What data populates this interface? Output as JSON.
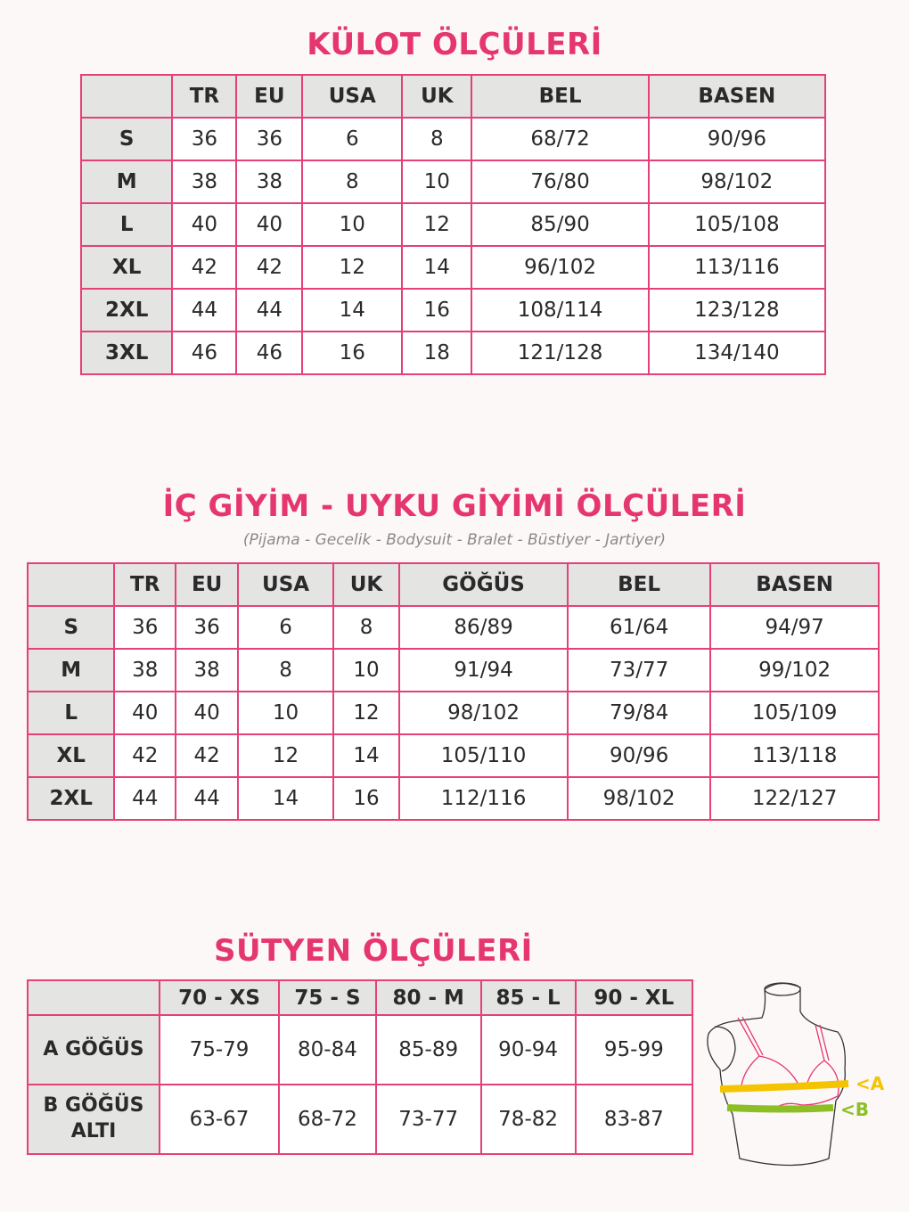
{
  "colors": {
    "accent": "#e5366f",
    "header_bg": "#e4e4e3",
    "border": "#e5407a",
    "band_a": "#f5c400",
    "band_b": "#8cbf26"
  },
  "kulot": {
    "title": "KÜLOT ÖLÇÜLERİ",
    "headers": [
      "",
      "TR",
      "EU",
      "USA",
      "UK",
      "BEL",
      "BASEN"
    ],
    "rows": [
      [
        "S",
        "36",
        "36",
        "6",
        "8",
        "68/72",
        "90/96"
      ],
      [
        "M",
        "38",
        "38",
        "8",
        "10",
        "76/80",
        "98/102"
      ],
      [
        "L",
        "40",
        "40",
        "10",
        "12",
        "85/90",
        "105/108"
      ],
      [
        "XL",
        "42",
        "42",
        "12",
        "14",
        "96/102",
        "113/116"
      ],
      [
        "2XL",
        "44",
        "44",
        "14",
        "16",
        "108/114",
        "123/128"
      ],
      [
        "3XL",
        "46",
        "46",
        "16",
        "18",
        "121/128",
        "134/140"
      ]
    ]
  },
  "ic_giyim": {
    "title": "İÇ GİYİM - UYKU GİYİMİ ÖLÇÜLERİ",
    "subtitle": "(Pijama - Gecelik - Bodysuit - Bralet - Büstiyer - Jartiyer)",
    "headers": [
      "",
      "TR",
      "EU",
      "USA",
      "UK",
      "GÖĞÜS",
      "BEL",
      "BASEN"
    ],
    "rows": [
      [
        "S",
        "36",
        "36",
        "6",
        "8",
        "86/89",
        "61/64",
        "94/97"
      ],
      [
        "M",
        "38",
        "38",
        "8",
        "10",
        "91/94",
        "73/77",
        "99/102"
      ],
      [
        "L",
        "40",
        "40",
        "10",
        "12",
        "98/102",
        "79/84",
        "105/109"
      ],
      [
        "XL",
        "42",
        "42",
        "12",
        "14",
        "105/110",
        "90/96",
        "113/118"
      ],
      [
        "2XL",
        "44",
        "44",
        "14",
        "16",
        "112/116",
        "98/102",
        "122/127"
      ]
    ]
  },
  "sutyen": {
    "title": "SÜTYEN ÖLÇÜLERİ",
    "headers": [
      "",
      "70 - XS",
      "75 - S",
      "80 - M",
      "85 - L",
      "90 - XL"
    ],
    "rows": [
      [
        "A GÖĞÜS",
        "75-79",
        "80-84",
        "85-89",
        "90-94",
        "95-99"
      ],
      [
        "B GÖĞÜS ALTI",
        "63-67",
        "68-72",
        "73-77",
        "78-82",
        "83-87"
      ]
    ],
    "illustration": {
      "label_a": "<A",
      "label_b": "<B"
    }
  }
}
